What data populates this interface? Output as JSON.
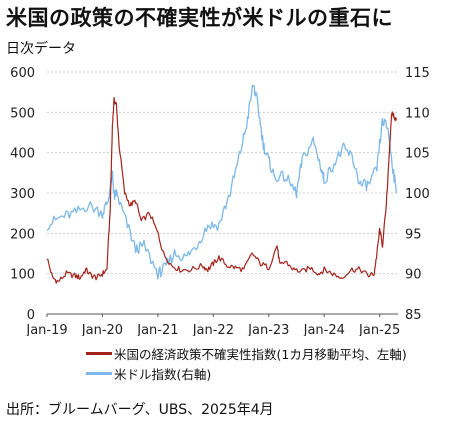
{
  "title": "米国の政策の不確実性が米ドルの重石に",
  "subtitle": "日次データ",
  "source": "出所：ブルームバーグ、UBS、2025年4月",
  "colors": {
    "uncertainty": "#a3231b",
    "usd": "#7db8e8",
    "grid": "#cfcfcf",
    "axis": "#555555"
  },
  "chart_data": {
    "type": "line",
    "title": "米国の政策の不確実性が米ドルの重石に",
    "subtitle": "日次データ",
    "x_axis": {
      "ticks": [
        "Jan-19",
        "Jan-20",
        "Jan-21",
        "Jan-22",
        "Jan-23",
        "Jan-24",
        "Jan-25"
      ],
      "range": [
        "2019-01",
        "2025-04"
      ]
    },
    "y_axis_left": {
      "range": [
        0,
        600
      ],
      "ticks": [
        "0",
        "100",
        "200",
        "300",
        "400",
        "500",
        "600"
      ]
    },
    "y_axis_right": {
      "range": [
        85,
        115
      ],
      "ticks": [
        "85",
        "90",
        "95",
        "100",
        "105",
        "110",
        "115"
      ]
    },
    "grid": "horizontal",
    "legend_position": "bottom",
    "series": [
      {
        "name": "米国の経済政策不確実性指数(1カ月移動平均、左軸)",
        "axis": "left",
        "color": "#a3231b",
        "x": [
          2019.0,
          2019.1,
          2019.2,
          2019.35,
          2019.5,
          2019.6,
          2019.7,
          2019.8,
          2019.9,
          2020.0,
          2020.08,
          2020.14,
          2020.18,
          2020.21,
          2020.25,
          2020.3,
          2020.4,
          2020.5,
          2020.6,
          2020.7,
          2020.85,
          2021.0,
          2021.1,
          2021.25,
          2021.4,
          2021.6,
          2021.8,
          2021.9,
          2022.0,
          2022.1,
          2022.25,
          2022.4,
          2022.55,
          2022.7,
          2022.85,
          2023.0,
          2023.15,
          2023.2,
          2023.3,
          2023.45,
          2023.6,
          2023.75,
          2023.9,
          2024.0,
          2024.15,
          2024.3,
          2024.5,
          2024.65,
          2024.8,
          2024.9,
          2024.95,
          2025.0,
          2025.05,
          2025.12,
          2025.18,
          2025.22,
          2025.26,
          2025.3
        ],
        "y": [
          140,
          90,
          80,
          100,
          95,
          90,
          110,
          95,
          90,
          100,
          110,
          260,
          470,
          530,
          520,
          420,
          300,
          270,
          280,
          230,
          250,
          200,
          150,
          120,
          110,
          110,
          120,
          110,
          125,
          140,
          120,
          115,
          110,
          150,
          125,
          115,
          170,
          120,
          130,
          110,
          105,
          115,
          100,
          110,
          100,
          90,
          110,
          110,
          95,
          100,
          150,
          210,
          170,
          270,
          420,
          500,
          490,
          480
        ]
      },
      {
        "name": "米ドル指数(右軸)",
        "axis": "right",
        "color": "#7db8e8",
        "x": [
          2019.0,
          2019.25,
          2019.5,
          2019.75,
          2020.0,
          2020.1,
          2020.18,
          2020.21,
          2020.25,
          2020.4,
          2020.6,
          2020.75,
          2021.0,
          2021.1,
          2021.3,
          2021.5,
          2021.7,
          2021.9,
          2022.1,
          2022.3,
          2022.45,
          2022.6,
          2022.72,
          2022.8,
          2022.9,
          2023.0,
          2023.1,
          2023.3,
          2023.5,
          2023.6,
          2023.8,
          2023.95,
          2024.0,
          2024.2,
          2024.35,
          2024.5,
          2024.65,
          2024.8,
          2024.95,
          2025.05,
          2025.15,
          2025.22,
          2025.3
        ],
        "y": [
          96,
          97,
          97.5,
          98.5,
          97.5,
          99,
          102.5,
          99.5,
          100,
          97,
          93,
          93.5,
          90,
          90.5,
          92.5,
          92,
          93.5,
          96,
          96,
          100,
          104,
          108.5,
          113.5,
          111,
          106,
          104,
          102,
          102,
          100,
          104,
          106.5,
          103,
          101.5,
          104,
          105.5,
          104.5,
          101,
          101,
          103,
          109,
          108,
          104,
          100
        ]
      }
    ]
  }
}
